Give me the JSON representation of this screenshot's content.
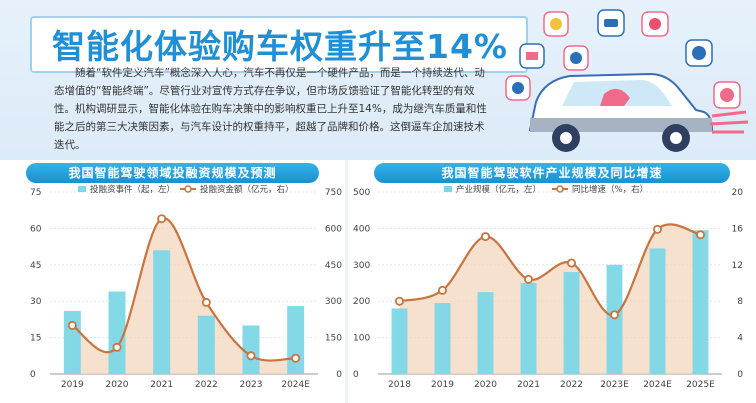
{
  "header": {
    "title": "智能化体验购车权重升至14%",
    "intro": "随着“软件定义汽车”概念深入人心，汽车不再仅是一个硬件产品，而是一个持续迭代、动态增值的“智能终端”。尽管行业对宣传方式存在争议，但市场反馈验证了智能化转型的有效性。机构调研显示，智能化体验在购车决策中的影响权重已上升至14%，成为继汽车质量和性能之后的第三大决策因素，与汽车设计的权重持平，超越了品牌和价格。这倒逼车企加速技术迭代。"
  },
  "colors": {
    "bar": "#7dd7e6",
    "line": "#c8743e",
    "area": "#f3d6bd",
    "title_blue": "#1f8fd6"
  },
  "chart_data": [
    {
      "type": "bar",
      "title": "我国智能驾驶领域投融资规模及预测",
      "categories": [
        "2019",
        "2020",
        "2021",
        "2022",
        "2023",
        "2024E"
      ],
      "series": [
        {
          "name": "投融资事件（起，左）",
          "type": "bar",
          "axis": "left",
          "values": [
            26,
            34,
            51,
            24,
            20,
            28
          ]
        },
        {
          "name": "投融资金额（亿元，右）",
          "type": "line",
          "axis": "right",
          "values": [
            200,
            110,
            640,
            295,
            75,
            65
          ]
        }
      ],
      "ylim_left": [
        0,
        75
      ],
      "yticks_left": [
        "0",
        "15",
        "30",
        "45",
        "60",
        "75"
      ],
      "ylim_right": [
        0,
        750
      ],
      "yticks_right": [
        "0",
        "150",
        "300",
        "450",
        "600",
        "750"
      ],
      "grid": true,
      "legend": "top"
    },
    {
      "type": "bar",
      "title": "我国智能驾驶软件产业规模及同比增速",
      "categories": [
        "2018",
        "2019",
        "2020",
        "2021",
        "2022",
        "2023E",
        "2024E",
        "2025E"
      ],
      "series": [
        {
          "name": "产业规模（亿元，左）",
          "type": "bar",
          "axis": "left",
          "values": [
            180,
            195,
            225,
            250,
            280,
            300,
            345,
            395
          ]
        },
        {
          "name": "同比增速（%，右）",
          "type": "line",
          "axis": "right",
          "values": [
            8.0,
            9.2,
            15.1,
            10.4,
            12.2,
            6.5,
            15.9,
            15.3
          ]
        }
      ],
      "ylim_left": [
        0,
        500
      ],
      "yticks_left": [
        "0",
        "100",
        "200",
        "300",
        "400",
        "500"
      ],
      "ylim_right": [
        0,
        20
      ],
      "yticks_right": [
        "0",
        "4",
        "8",
        "12",
        "16",
        "20"
      ],
      "grid": true,
      "legend": "top"
    }
  ]
}
